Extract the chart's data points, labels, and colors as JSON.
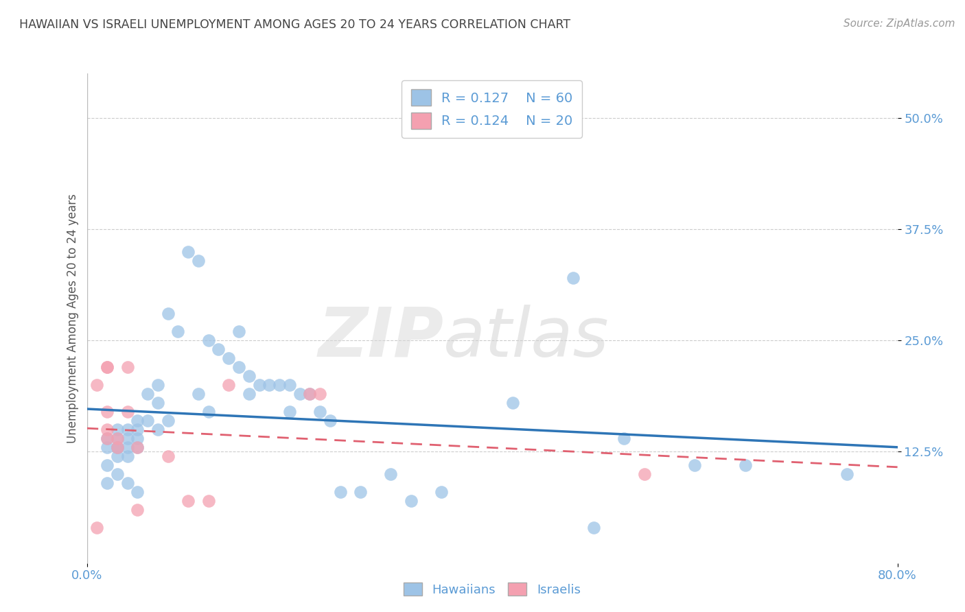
{
  "title": "HAWAIIAN VS ISRAELI UNEMPLOYMENT AMONG AGES 20 TO 24 YEARS CORRELATION CHART",
  "source": "Source: ZipAtlas.com",
  "ylabel": "Unemployment Among Ages 20 to 24 years",
  "ytick_labels": [
    "50.0%",
    "37.5%",
    "25.0%",
    "12.5%"
  ],
  "ytick_values": [
    0.5,
    0.375,
    0.25,
    0.125
  ],
  "xlim": [
    0.0,
    0.8
  ],
  "ylim": [
    0.0,
    0.55
  ],
  "title_color": "#444444",
  "source_color": "#999999",
  "ylabel_color": "#555555",
  "tick_color": "#5b9bd5",
  "grid_color": "#cccccc",
  "watermark_zip": "ZIP",
  "watermark_atlas": "atlas",
  "hawaiian_color": "#9dc3e6",
  "israeli_color": "#f4a0b0",
  "hawaiian_line_color": "#2e75b6",
  "israeli_line_color": "#e06070",
  "legend_R_hawaiian": "R = 0.127",
  "legend_N_hawaiian": "N = 60",
  "legend_R_israeli": "R = 0.124",
  "legend_N_israeli": "N = 20",
  "hawaiian_x": [
    0.02,
    0.02,
    0.02,
    0.02,
    0.03,
    0.03,
    0.03,
    0.03,
    0.03,
    0.03,
    0.04,
    0.04,
    0.04,
    0.04,
    0.04,
    0.05,
    0.05,
    0.05,
    0.05,
    0.05,
    0.06,
    0.06,
    0.07,
    0.07,
    0.07,
    0.08,
    0.08,
    0.09,
    0.1,
    0.11,
    0.11,
    0.12,
    0.12,
    0.13,
    0.14,
    0.15,
    0.15,
    0.16,
    0.16,
    0.17,
    0.18,
    0.19,
    0.2,
    0.2,
    0.21,
    0.22,
    0.23,
    0.24,
    0.25,
    0.27,
    0.3,
    0.32,
    0.35,
    0.42,
    0.48,
    0.5,
    0.53,
    0.6,
    0.65,
    0.75
  ],
  "hawaiian_y": [
    0.14,
    0.13,
    0.11,
    0.09,
    0.15,
    0.14,
    0.13,
    0.13,
    0.12,
    0.1,
    0.15,
    0.14,
    0.13,
    0.12,
    0.09,
    0.16,
    0.15,
    0.14,
    0.13,
    0.08,
    0.19,
    0.16,
    0.2,
    0.18,
    0.15,
    0.28,
    0.16,
    0.26,
    0.35,
    0.34,
    0.19,
    0.25,
    0.17,
    0.24,
    0.23,
    0.26,
    0.22,
    0.21,
    0.19,
    0.2,
    0.2,
    0.2,
    0.2,
    0.17,
    0.19,
    0.19,
    0.17,
    0.16,
    0.08,
    0.08,
    0.1,
    0.07,
    0.08,
    0.18,
    0.32,
    0.04,
    0.14,
    0.11,
    0.11,
    0.1
  ],
  "israeli_x": [
    0.01,
    0.01,
    0.02,
    0.02,
    0.02,
    0.02,
    0.02,
    0.03,
    0.03,
    0.04,
    0.04,
    0.05,
    0.05,
    0.08,
    0.1,
    0.12,
    0.14,
    0.22,
    0.23,
    0.55
  ],
  "israeli_y": [
    0.2,
    0.04,
    0.22,
    0.22,
    0.17,
    0.15,
    0.14,
    0.14,
    0.13,
    0.22,
    0.17,
    0.13,
    0.06,
    0.12,
    0.07,
    0.07,
    0.2,
    0.19,
    0.19,
    0.1
  ]
}
